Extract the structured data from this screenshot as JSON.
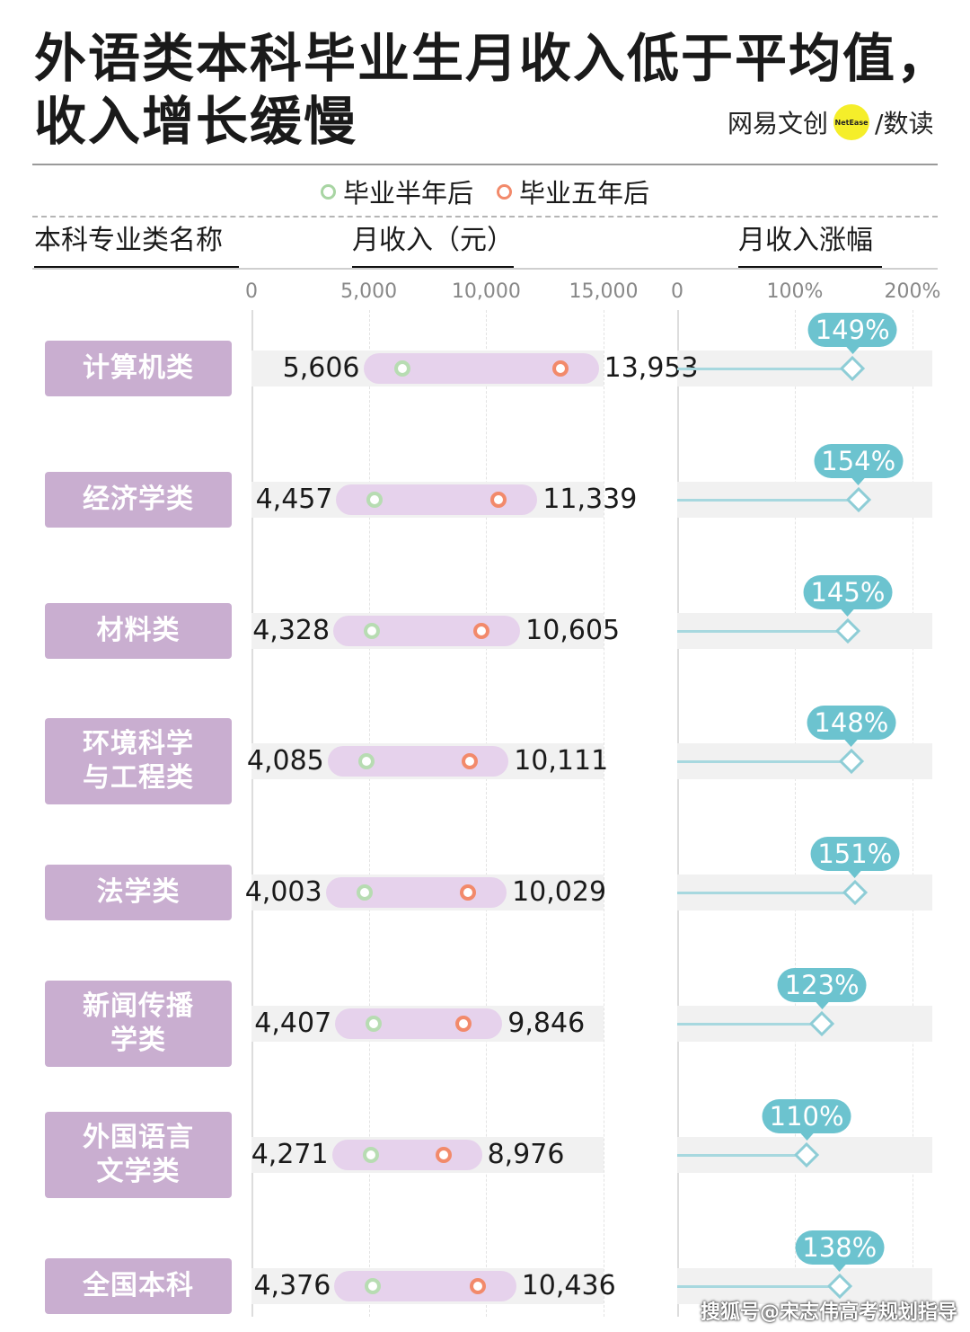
{
  "title": "外语类本科毕业生月收入低于平均值，收入增长缓慢",
  "brand": {
    "left": "网易文创",
    "badge": "NetEase",
    "right": "/数读"
  },
  "legend": [
    {
      "label": "毕业半年后",
      "color": "#a8d5a3"
    },
    {
      "label": "毕业五年后",
      "color": "#f28a6b"
    }
  ],
  "headers": {
    "name": "本科专业类名称",
    "income": "月收入（元）",
    "growth": "月收入涨幅"
  },
  "income_ticks": [
    "0",
    "5,000",
    "10,000",
    "15,000"
  ],
  "growth_ticks": [
    "0",
    "100%",
    "200%"
  ],
  "watermark": "搜狐号@宋志伟高考规划指导",
  "colors": {
    "category_bg": "#c9aed0",
    "pill": "#e6d2ec",
    "growth_bubble": "#6cc3cf",
    "growth_line": "#a7d8df"
  },
  "chart_data": {
    "type": "dumbbell",
    "title": "外语类本科毕业生月收入低于平均值，收入增长缓慢",
    "categories": [
      "计算机类",
      "经济学类",
      "材料类",
      "环境科学与工程类",
      "法学类",
      "新闻传播学类",
      "外国语言文学类",
      "全国本科"
    ],
    "category_labels": [
      "计算机类",
      "经济学类",
      "材料类",
      "环境科学\n与工程类",
      "法学类",
      "新闻传播\n学类",
      "外国语言\n文学类",
      "全国本科"
    ],
    "series": [
      {
        "name": "毕业半年后",
        "values": [
          5606,
          4457,
          4328,
          4085,
          4003,
          4407,
          4271,
          4376
        ]
      },
      {
        "name": "毕业五年后",
        "values": [
          13953,
          11339,
          10605,
          10111,
          10029,
          9846,
          8976,
          10436
        ]
      }
    ],
    "value_labels": {
      "half_year": [
        "5,606",
        "4,457",
        "4,328",
        "4,085",
        "4,003",
        "4,407",
        "4,271",
        "4,376"
      ],
      "five_year": [
        "13,953",
        "11,339",
        "10,605",
        "10,111",
        "10,029",
        "9,846",
        "8,976",
        "10,436"
      ]
    },
    "growth": [
      149,
      154,
      145,
      148,
      151,
      123,
      110,
      138
    ],
    "growth_labels": [
      "149%",
      "154%",
      "145%",
      "148%",
      "151%",
      "123%",
      "110%",
      "138%"
    ],
    "income_axis": {
      "label": "月收入（元）",
      "range": [
        0,
        15000
      ]
    },
    "growth_axis": {
      "label": "月收入涨幅",
      "range": [
        0,
        200
      ]
    }
  }
}
